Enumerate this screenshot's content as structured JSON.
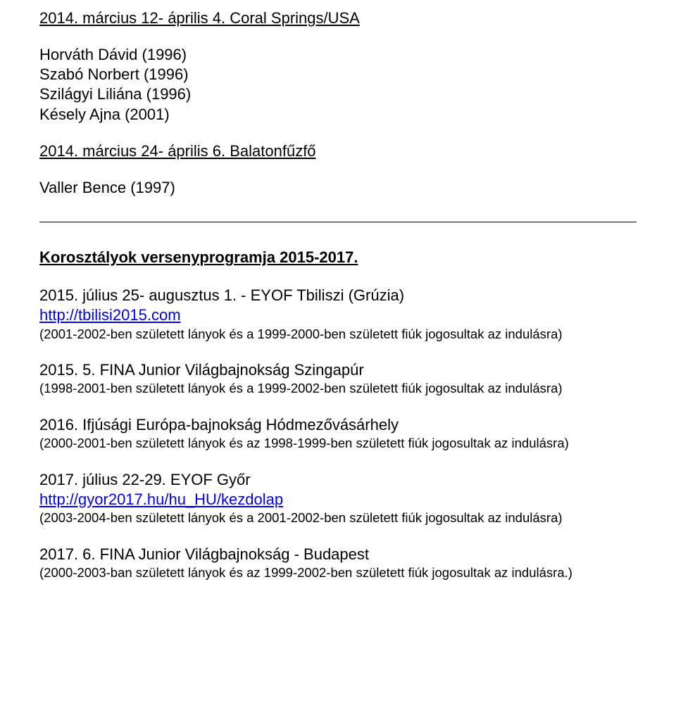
{
  "colors": {
    "text": "#000000",
    "link": "#0000ee",
    "background": "#ffffff",
    "rule": "#000000"
  },
  "typography": {
    "body_fontsize_pt": 16,
    "note_fontsize_pt": 14,
    "font_family": "Arial"
  },
  "top_event": {
    "heading": "2014. március 12- április 4. Coral Springs/USA",
    "participants": [
      "Horváth Dávid (1996)",
      "Szabó Norbert (1996)",
      "Szilágyi Liliána (1996)",
      "Késely Ajna (2001)"
    ]
  },
  "second_event": {
    "heading": "2014. március 24- április 6. Balatonfűzfő",
    "participants": [
      "Valler Bence (1997)"
    ]
  },
  "program": {
    "title": "Korosztályok versenyprogramja 2015-2017.",
    "events": [
      {
        "title": "2015. július 25- augusztus 1. - EYOF Tbiliszi (Grúzia)",
        "link": "http://tbilisi2015.com",
        "note": "(2001-2002-ben született lányok és a 1999-2000-ben született fiúk jogosultak az indulásra)"
      },
      {
        "title": "2015. 5. FINA Junior Világbajnokság Szingapúr",
        "link": "",
        "note": "(1998-2001-ben született lányok és a 1999-2002-ben született fiúk jogosultak az indulásra)"
      },
      {
        "title": "2016. Ifjúsági Európa-bajnokság Hódmezővásárhely",
        "link": "",
        "note": "(2000-2001-ben született lányok és az 1998-1999-ben született fiúk jogosultak az indulásra)"
      },
      {
        "title": "2017. július 22-29. EYOF Győr",
        "link": "http://gyor2017.hu/hu_HU/kezdolap",
        "note": "(2003-2004-ben született lányok és a 2001-2002-ben született fiúk jogosultak az indulásra)"
      },
      {
        "title": "2017. 6. FINA Junior Világbajnokság - Budapest",
        "link": "",
        "note": "(2000-2003-ban született lányok és az 1999-2002-ben született fiúk jogosultak az indulásra.)"
      }
    ]
  }
}
